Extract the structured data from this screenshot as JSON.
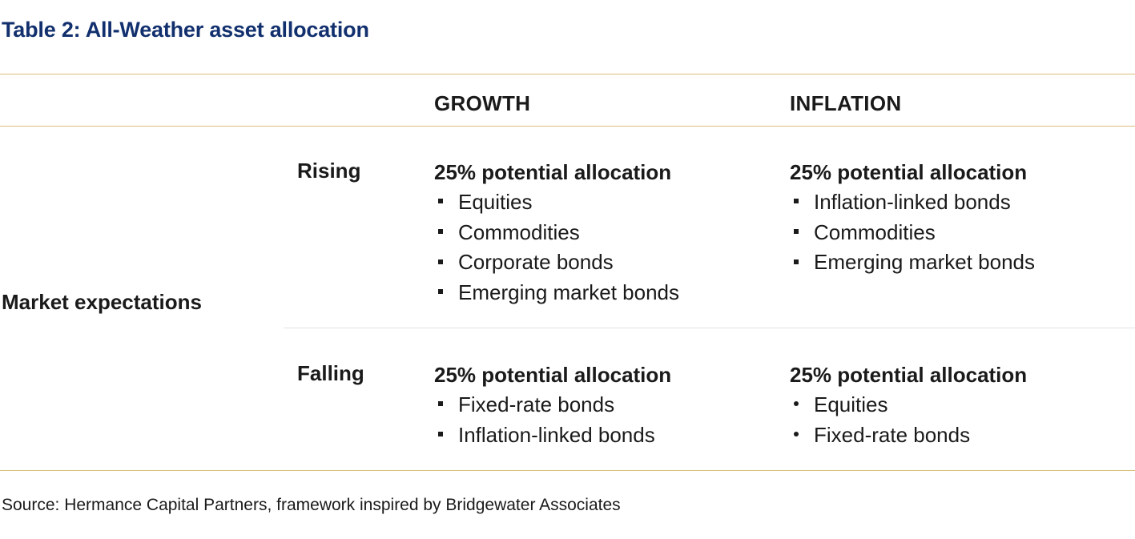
{
  "title": "Table 2: All-Weather asset allocation",
  "columns": {
    "growth": "GROWTH",
    "inflation": "INFLATION"
  },
  "row_label": "Market expectations",
  "rows": {
    "rising": {
      "label": "Rising",
      "growth": {
        "allocation": "25% potential allocation",
        "items": [
          "Equities",
          "Commodities",
          "Corporate bonds",
          "Emerging market bonds"
        ]
      },
      "inflation": {
        "allocation": "25% potential allocation",
        "items": [
          "Inflation-linked bonds",
          "Commodities",
          "Emerging market bonds"
        ]
      }
    },
    "falling": {
      "label": "Falling",
      "growth": {
        "allocation": "25% potential allocation",
        "items": [
          "Fixed-rate bonds",
          "Inflation-linked bonds"
        ]
      },
      "inflation": {
        "allocation": "25% potential allocation",
        "items": [
          "Equities",
          "Fixed-rate bonds"
        ]
      }
    }
  },
  "source": "Source: Hermance Capital Partners, framework inspired by Bridgewater Associates"
}
